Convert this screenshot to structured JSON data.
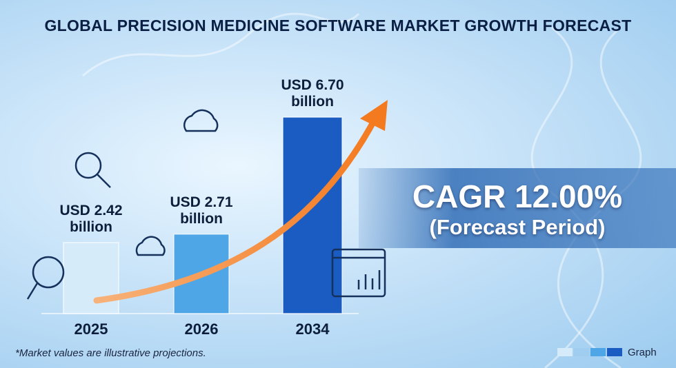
{
  "chart_data": {
    "type": "bar",
    "title": "GLOBAL PRECISION MEDICINE SOFTWARE MARKET GROWTH FORECAST",
    "categories": [
      "2025",
      "2026",
      "2034"
    ],
    "values": [
      2.42,
      2.71,
      6.7
    ],
    "value_labels": [
      "USD 2.42 billion",
      "USD 2.71 billion",
      "USD 6.70 billion"
    ],
    "colors": [
      "#d6ebfa",
      "#4fa6e6",
      "#1a5cc2"
    ],
    "annotations": {
      "cagr": "CAGR 12.00%",
      "period": "(Forecast Period)"
    },
    "footnote": "*Market values are illustrative projections.",
    "brand": "Graph"
  }
}
